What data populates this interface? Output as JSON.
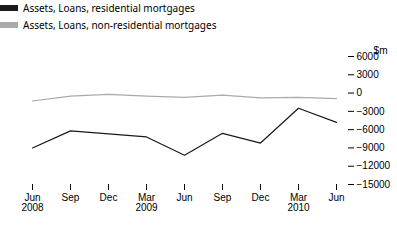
{
  "chart_data": {
    "type": "line",
    "categories": [
      "Jun\n2008",
      "Sep",
      "Dec",
      "Mar\n2009",
      "Jun",
      "Sep",
      "Dec",
      "Mar\n2010",
      "Jun"
    ],
    "series": [
      {
        "name": "Assets, Loans, residential mortgages",
        "color": "#1a1a1a",
        "values": [
          -9000,
          -6200,
          -6700,
          -7200,
          -10200,
          -6600,
          -8200,
          -2500,
          -4800
        ]
      },
      {
        "name": "Assets, Loans, non-residential mortgages",
        "color": "#aaaaaa",
        "values": [
          -1300,
          -500,
          -200,
          -500,
          -700,
          -350,
          -800,
          -700,
          -900
        ]
      }
    ],
    "ylabel": "$m",
    "ylim": [
      -15000,
      6000
    ],
    "yticks": [
      {
        "value": -15000,
        "label": "−15000"
      },
      {
        "value": -12000,
        "label": "−12000"
      },
      {
        "value": -9000,
        "label": "−9000"
      },
      {
        "value": -6000,
        "label": "−6000"
      },
      {
        "value": -3000,
        "label": "−3000"
      },
      0,
      3000,
      6000
    ]
  }
}
